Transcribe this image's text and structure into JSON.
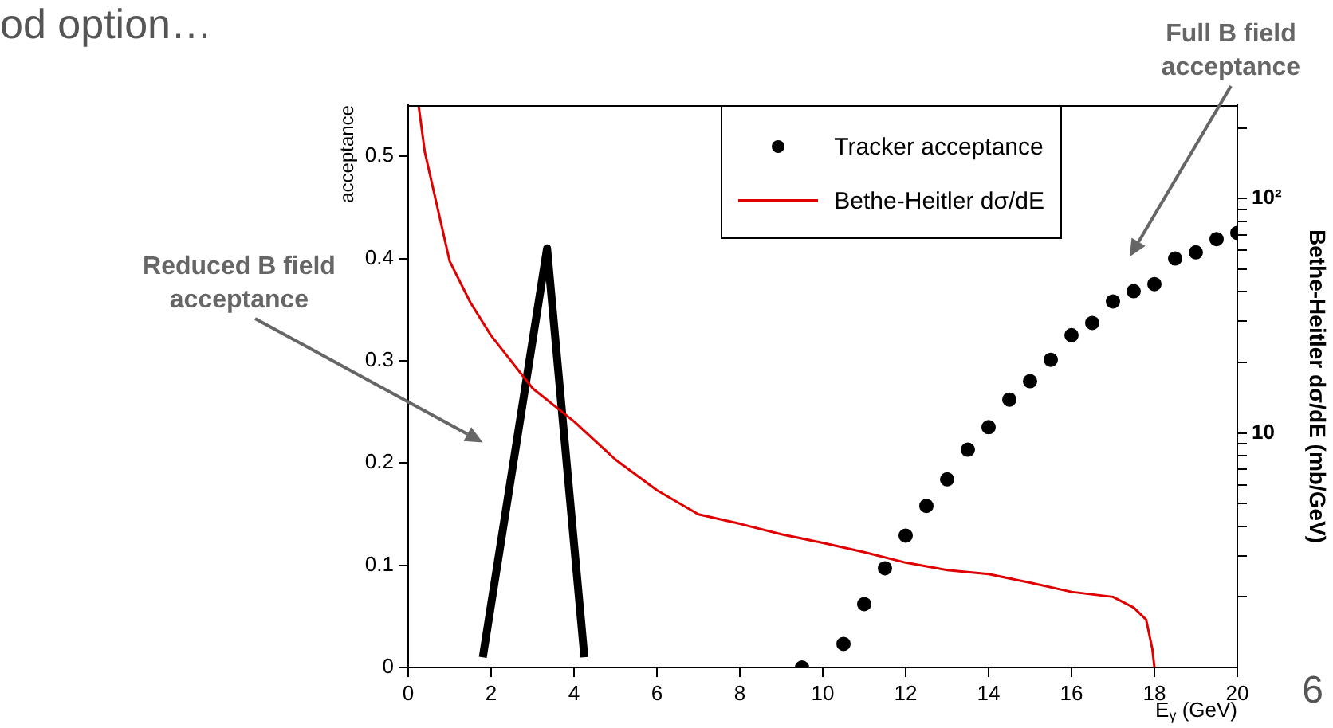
{
  "chart_data": {
    "type": "scatter",
    "title": "od option…",
    "xlabel": "E$_{γ}$ (GeV)",
    "ylabel": "acceptance",
    "y2label": "Bethe-Heitler dσ/dE (mb/GeV)",
    "xlim": [
      0,
      20
    ],
    "xticks": [
      0,
      2,
      4,
      6,
      8,
      10,
      12,
      14,
      16,
      18,
      20
    ],
    "ylim": [
      0,
      0.55
    ],
    "yticks": [
      0,
      0.1,
      0.2,
      0.3,
      0.4,
      0.5
    ],
    "y2lim": [
      1,
      250
    ],
    "y2ticks": [
      {
        "value": 2,
        "label": null
      },
      {
        "value": 3,
        "label": null
      },
      {
        "value": 4,
        "label": null
      },
      {
        "value": 5,
        "label": null
      },
      {
        "value": 6,
        "label": null
      },
      {
        "value": 7,
        "label": null
      },
      {
        "value": 8,
        "label": null
      },
      {
        "value": 9,
        "label": null
      },
      10,
      {
        "value": 20,
        "label": null
      },
      {
        "value": 30,
        "label": null
      },
      {
        "value": 40,
        "label": null
      },
      {
        "value": 50,
        "label": null
      },
      {
        "value": 60,
        "label": null
      },
      {
        "value": 70,
        "label": null
      },
      {
        "value": 80,
        "label": null
      },
      {
        "value": 90,
        "label": null
      },
      {
        "value": 100,
        "label": "10²"
      },
      {
        "value": 200,
        "label": null
      }
    ],
    "log": "y2",
    "grid": false,
    "legend": "top right",
    "series": [
      {
        "name": "Tracker acceptance",
        "type": "scatter",
        "marker": "circle",
        "color": "#000000",
        "x": [
          9.5,
          10.5,
          11,
          11.5,
          12,
          12.5,
          13,
          13.5,
          14,
          14.5,
          15,
          15.5,
          16,
          16.5,
          17,
          17.5,
          18,
          18.5,
          19,
          19.5,
          20
        ],
        "values": [
          0,
          0.023,
          0.062,
          0.097,
          0.129,
          0.158,
          0.184,
          0.213,
          0.235,
          0.262,
          0.28,
          0.301,
          0.325,
          0.337,
          0.358,
          0.368,
          0.375,
          0.4,
          0.406,
          0.419,
          0.425
        ]
      },
      {
        "name": "Bethe-Heitler dσ/dE",
        "type": "line",
        "axis": "y2",
        "color": "#e00000",
        "x": [
          0.25,
          0.4,
          1,
          1.5,
          2,
          3,
          4,
          5,
          6,
          7,
          8,
          9,
          10,
          11,
          12,
          13,
          14,
          15,
          16,
          17,
          17.5,
          17.8,
          17.95,
          18
        ],
        "values": [
          250,
          158,
          54,
          36,
          26,
          15.5,
          11.2,
          7.7,
          5.7,
          4.5,
          4.1,
          3.7,
          3.4,
          3.1,
          2.8,
          2.6,
          2.5,
          2.3,
          2.1,
          2.0,
          1.8,
          1.6,
          1.2,
          1
        ]
      },
      {
        "type": "line",
        "color": "#000000",
        "x": [
          1.8,
          3.35,
          4.25
        ],
        "values": [
          0.01,
          0.41,
          0.01
        ]
      }
    ],
    "annotations": [
      "Reduced B field acceptance",
      "Full B field acceptance",
      "6"
    ]
  }
}
